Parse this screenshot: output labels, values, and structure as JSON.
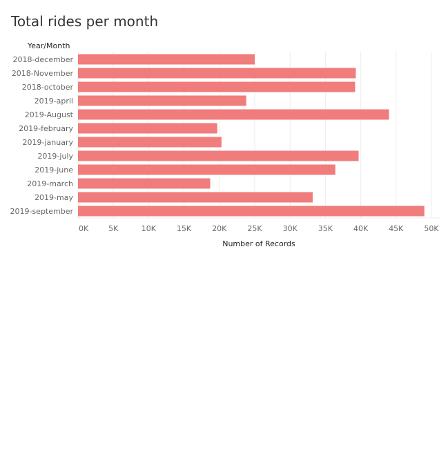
{
  "chart_data": {
    "type": "bar",
    "orientation": "horizontal",
    "title": "Total rides per month",
    "row_header": "Year/Month",
    "xlabel": "Number of Records",
    "ylabel": "",
    "categories": [
      "2018-december",
      "2018-November",
      "2018-october",
      "2019-april",
      "2019-August",
      "2019-february",
      "2019-january",
      "2019-july",
      "2019-june",
      "2019-march",
      "2019-may",
      "2019-september"
    ],
    "values": [
      25000,
      39300,
      39200,
      23800,
      44000,
      19700,
      20300,
      39700,
      36400,
      18700,
      33200,
      49000
    ],
    "xlim": [
      0,
      50000
    ],
    "x_ticks": [
      0,
      5000,
      10000,
      15000,
      20000,
      25000,
      30000,
      35000,
      40000,
      45000,
      50000
    ],
    "x_tick_labels": [
      "0K",
      "5K",
      "10K",
      "15K",
      "20K",
      "25K",
      "30K",
      "35K",
      "40K",
      "45K",
      "50K"
    ],
    "vertical_grid": true,
    "bar_color": "#f07c7c",
    "grid_color": "#ececec"
  }
}
